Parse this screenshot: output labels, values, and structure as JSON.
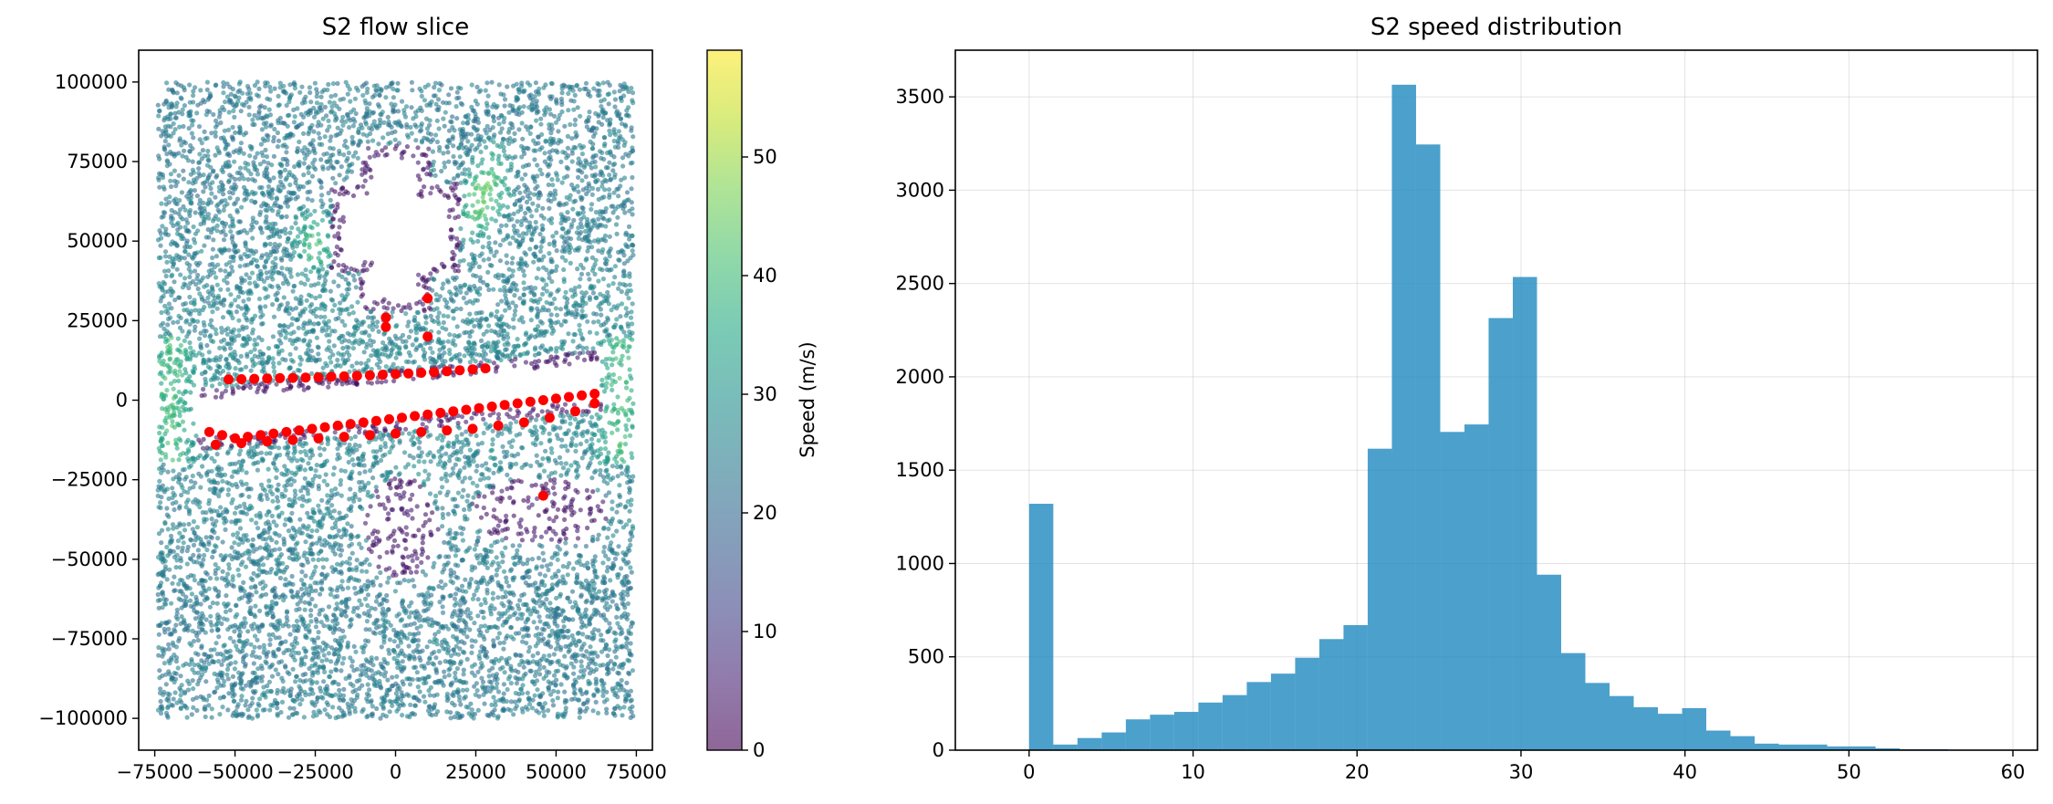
{
  "chart_data": [
    {
      "type": "scatter",
      "title": "S2 flow slice",
      "xlabel": "",
      "ylabel": "",
      "xlim": [
        -80000,
        80000
      ],
      "ylim": [
        -110000,
        110000
      ],
      "xticks": [
        -75000,
        -50000,
        -25000,
        0,
        25000,
        50000,
        75000
      ],
      "xtick_labels": [
        "−75000",
        "−50000",
        "−25000",
        "0",
        "25000",
        "50000",
        "75000"
      ],
      "yticks": [
        -100000,
        -75000,
        -50000,
        -25000,
        0,
        25000,
        50000,
        75000,
        100000
      ],
      "ytick_labels": [
        "−100000",
        "−75000",
        "−50000",
        "−25000",
        "0",
        "25000",
        "50000",
        "75000",
        "100000"
      ],
      "domain": {
        "x": [
          -74000,
          74000
        ],
        "y": [
          -100000,
          100000
        ]
      },
      "colormap": "viridis",
      "point_alpha": 0.6,
      "colorbar": {
        "label": "Speed (m/s)",
        "range": [
          0,
          59
        ],
        "ticks": [
          0,
          10,
          20,
          30,
          40,
          50
        ],
        "tick_labels": [
          "0",
          "10",
          "20",
          "30",
          "40",
          "50"
        ]
      },
      "obstacles": [
        {
          "shape": "cross",
          "center": [
            0,
            54000
          ],
          "arm_half_width": [
            7000,
            10000
          ],
          "half_extent": [
            16000,
            22000
          ]
        },
        {
          "shape": "slab",
          "from": [
            -62000,
            -6000
          ],
          "to": [
            64000,
            6000
          ],
          "half_thickness": 8000
        },
        {
          "shape": "blob",
          "center": [
            2000,
            -40000
          ],
          "radii": [
            10000,
            14000
          ]
        },
        {
          "shape": "blob",
          "center": [
            45000,
            -35000
          ],
          "radii": [
            19000,
            9000
          ]
        }
      ],
      "highlight_color": "#ff0000",
      "highlights": [
        [
          -52000,
          6500
        ],
        [
          -48000,
          6600
        ],
        [
          -44000,
          6700
        ],
        [
          -40000,
          6800
        ],
        [
          -36000,
          6900
        ],
        [
          -32000,
          7000
        ],
        [
          -28000,
          7100
        ],
        [
          -24000,
          7200
        ],
        [
          -20000,
          7400
        ],
        [
          -16000,
          7500
        ],
        [
          -12000,
          7700
        ],
        [
          -8000,
          7800
        ],
        [
          -4000,
          8000
        ],
        [
          0,
          8200
        ],
        [
          4000,
          8400
        ],
        [
          8000,
          8600
        ],
        [
          12000,
          8800
        ],
        [
          16000,
          9100
        ],
        [
          20000,
          9400
        ],
        [
          24000,
          9700
        ],
        [
          28000,
          10000
        ],
        [
          -3000,
          26000
        ],
        [
          -3000,
          23000
        ],
        [
          10000,
          32000
        ],
        [
          10000,
          20000
        ],
        [
          46000,
          -30000
        ],
        [
          -58000,
          -10000
        ],
        [
          -54000,
          -11000
        ],
        [
          -50000,
          -12000
        ],
        [
          -46000,
          -11500
        ],
        [
          -42000,
          -11000
        ],
        [
          -38000,
          -10500
        ],
        [
          -34000,
          -10000
        ],
        [
          -30000,
          -9500
        ],
        [
          -26000,
          -9000
        ],
        [
          -22000,
          -8500
        ],
        [
          -18000,
          -8000
        ],
        [
          -14000,
          -7500
        ],
        [
          -10000,
          -7000
        ],
        [
          -6000,
          -6500
        ],
        [
          -2000,
          -6000
        ],
        [
          2000,
          -5500
        ],
        [
          6000,
          -5000
        ],
        [
          10000,
          -4500
        ],
        [
          14000,
          -4000
        ],
        [
          18000,
          -3500
        ],
        [
          22000,
          -3000
        ],
        [
          26000,
          -2500
        ],
        [
          30000,
          -2000
        ],
        [
          34000,
          -1500
        ],
        [
          38000,
          -1000
        ],
        [
          42000,
          -500
        ],
        [
          46000,
          0
        ],
        [
          50000,
          500
        ],
        [
          54000,
          1000
        ],
        [
          58000,
          1500
        ],
        [
          62000,
          2000
        ],
        [
          -56000,
          -14000
        ],
        [
          -48000,
          -13500
        ],
        [
          -40000,
          -13000
        ],
        [
          -32000,
          -12500
        ],
        [
          -24000,
          -12000
        ],
        [
          -16000,
          -11500
        ],
        [
          -8000,
          -11000
        ],
        [
          0,
          -10500
        ],
        [
          8000,
          -10000
        ],
        [
          16000,
          -9500
        ],
        [
          24000,
          -9000
        ],
        [
          32000,
          -8000
        ],
        [
          40000,
          -7000
        ],
        [
          48000,
          -5500
        ],
        [
          56000,
          -3500
        ],
        [
          62000,
          -1000
        ]
      ]
    },
    {
      "type": "histogram",
      "title": "S2 speed distribution",
      "xlabel": "",
      "ylabel": "",
      "bar_color": "#1f88bf",
      "bar_alpha": 0.8,
      "xlim": [
        -4.5,
        61.5
      ],
      "ylim": [
        0,
        3750
      ],
      "xticks": [
        0,
        10,
        20,
        30,
        40,
        50,
        60
      ],
      "xtick_labels": [
        "0",
        "10",
        "20",
        "30",
        "40",
        "50",
        "60"
      ],
      "yticks": [
        0,
        500,
        1000,
        1500,
        2000,
        2500,
        3000,
        3500
      ],
      "ytick_labels": [
        "0",
        "500",
        "1000",
        "1500",
        "2000",
        "2500",
        "3000",
        "3500"
      ],
      "bin_edges": [
        0,
        1.475,
        2.95,
        4.425,
        5.9,
        7.375,
        8.85,
        10.325,
        11.8,
        13.275,
        14.75,
        16.225,
        17.7,
        19.175,
        20.65,
        22.125,
        23.6,
        25.075,
        26.55,
        28.025,
        29.5,
        30.975,
        32.45,
        33.925,
        35.4,
        36.875,
        38.35,
        39.825,
        41.3,
        42.775,
        44.25,
        45.725,
        47.2,
        48.675,
        50.15,
        51.625,
        53.1,
        54.575,
        56.05,
        57.525,
        59
      ],
      "counts": [
        1320,
        30,
        65,
        95,
        165,
        190,
        205,
        255,
        295,
        365,
        410,
        495,
        595,
        670,
        1615,
        3565,
        3245,
        1705,
        1745,
        2315,
        2535,
        940,
        520,
        360,
        290,
        230,
        195,
        225,
        105,
        75,
        35,
        30,
        30,
        20,
        20,
        10,
        5,
        5,
        0,
        0
      ]
    }
  ]
}
